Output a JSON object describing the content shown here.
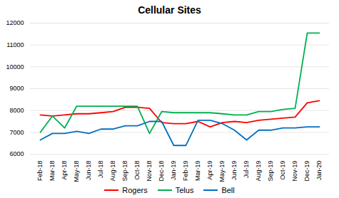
{
  "chart_data": {
    "type": "line",
    "title": "Cellular Sites",
    "categories": [
      "Feb-18",
      "Mar-18",
      "Apr-18",
      "May-18",
      "Jun-18",
      "Jul-18",
      "Aug-18",
      "Sep-18",
      "Oct-18",
      "Nov-18",
      "Dec-18",
      "Jan-19",
      "Feb-19",
      "Mar-19",
      "Apr-19",
      "May-19",
      "Jun-19",
      "Jul-19",
      "Aug-19",
      "Sep-19",
      "Oct-19",
      "Nov-19",
      "Dec-19",
      "Jan-20"
    ],
    "series": [
      {
        "name": "Rogers",
        "color": "#FF0000",
        "values": [
          7800,
          7750,
          7800,
          7850,
          7850,
          7900,
          7950,
          8150,
          8150,
          8100,
          7450,
          7400,
          7400,
          7500,
          7250,
          7450,
          7500,
          7450,
          7550,
          7600,
          7650,
          7700,
          8350,
          8450
        ]
      },
      {
        "name": "Telus",
        "color": "#00B050",
        "values": [
          7000,
          7750,
          7200,
          8200,
          8200,
          8200,
          8200,
          8200,
          8200,
          6950,
          7950,
          7900,
          7900,
          7900,
          7900,
          7850,
          7800,
          7800,
          7950,
          7950,
          8050,
          8100,
          11550,
          11550
        ]
      },
      {
        "name": "Bell",
        "color": "#0070C0",
        "values": [
          6650,
          6950,
          6950,
          7050,
          6950,
          7150,
          7150,
          7300,
          7300,
          7500,
          7500,
          6400,
          6400,
          7550,
          7550,
          7400,
          7100,
          6650,
          7100,
          7100,
          7200,
          7200,
          7250,
          7250
        ]
      }
    ],
    "ylim": [
      6000,
      12000
    ],
    "yticks": [
      6000,
      7000,
      8000,
      9000,
      10000,
      11000,
      12000
    ],
    "grid": true,
    "legend": "bottom"
  }
}
